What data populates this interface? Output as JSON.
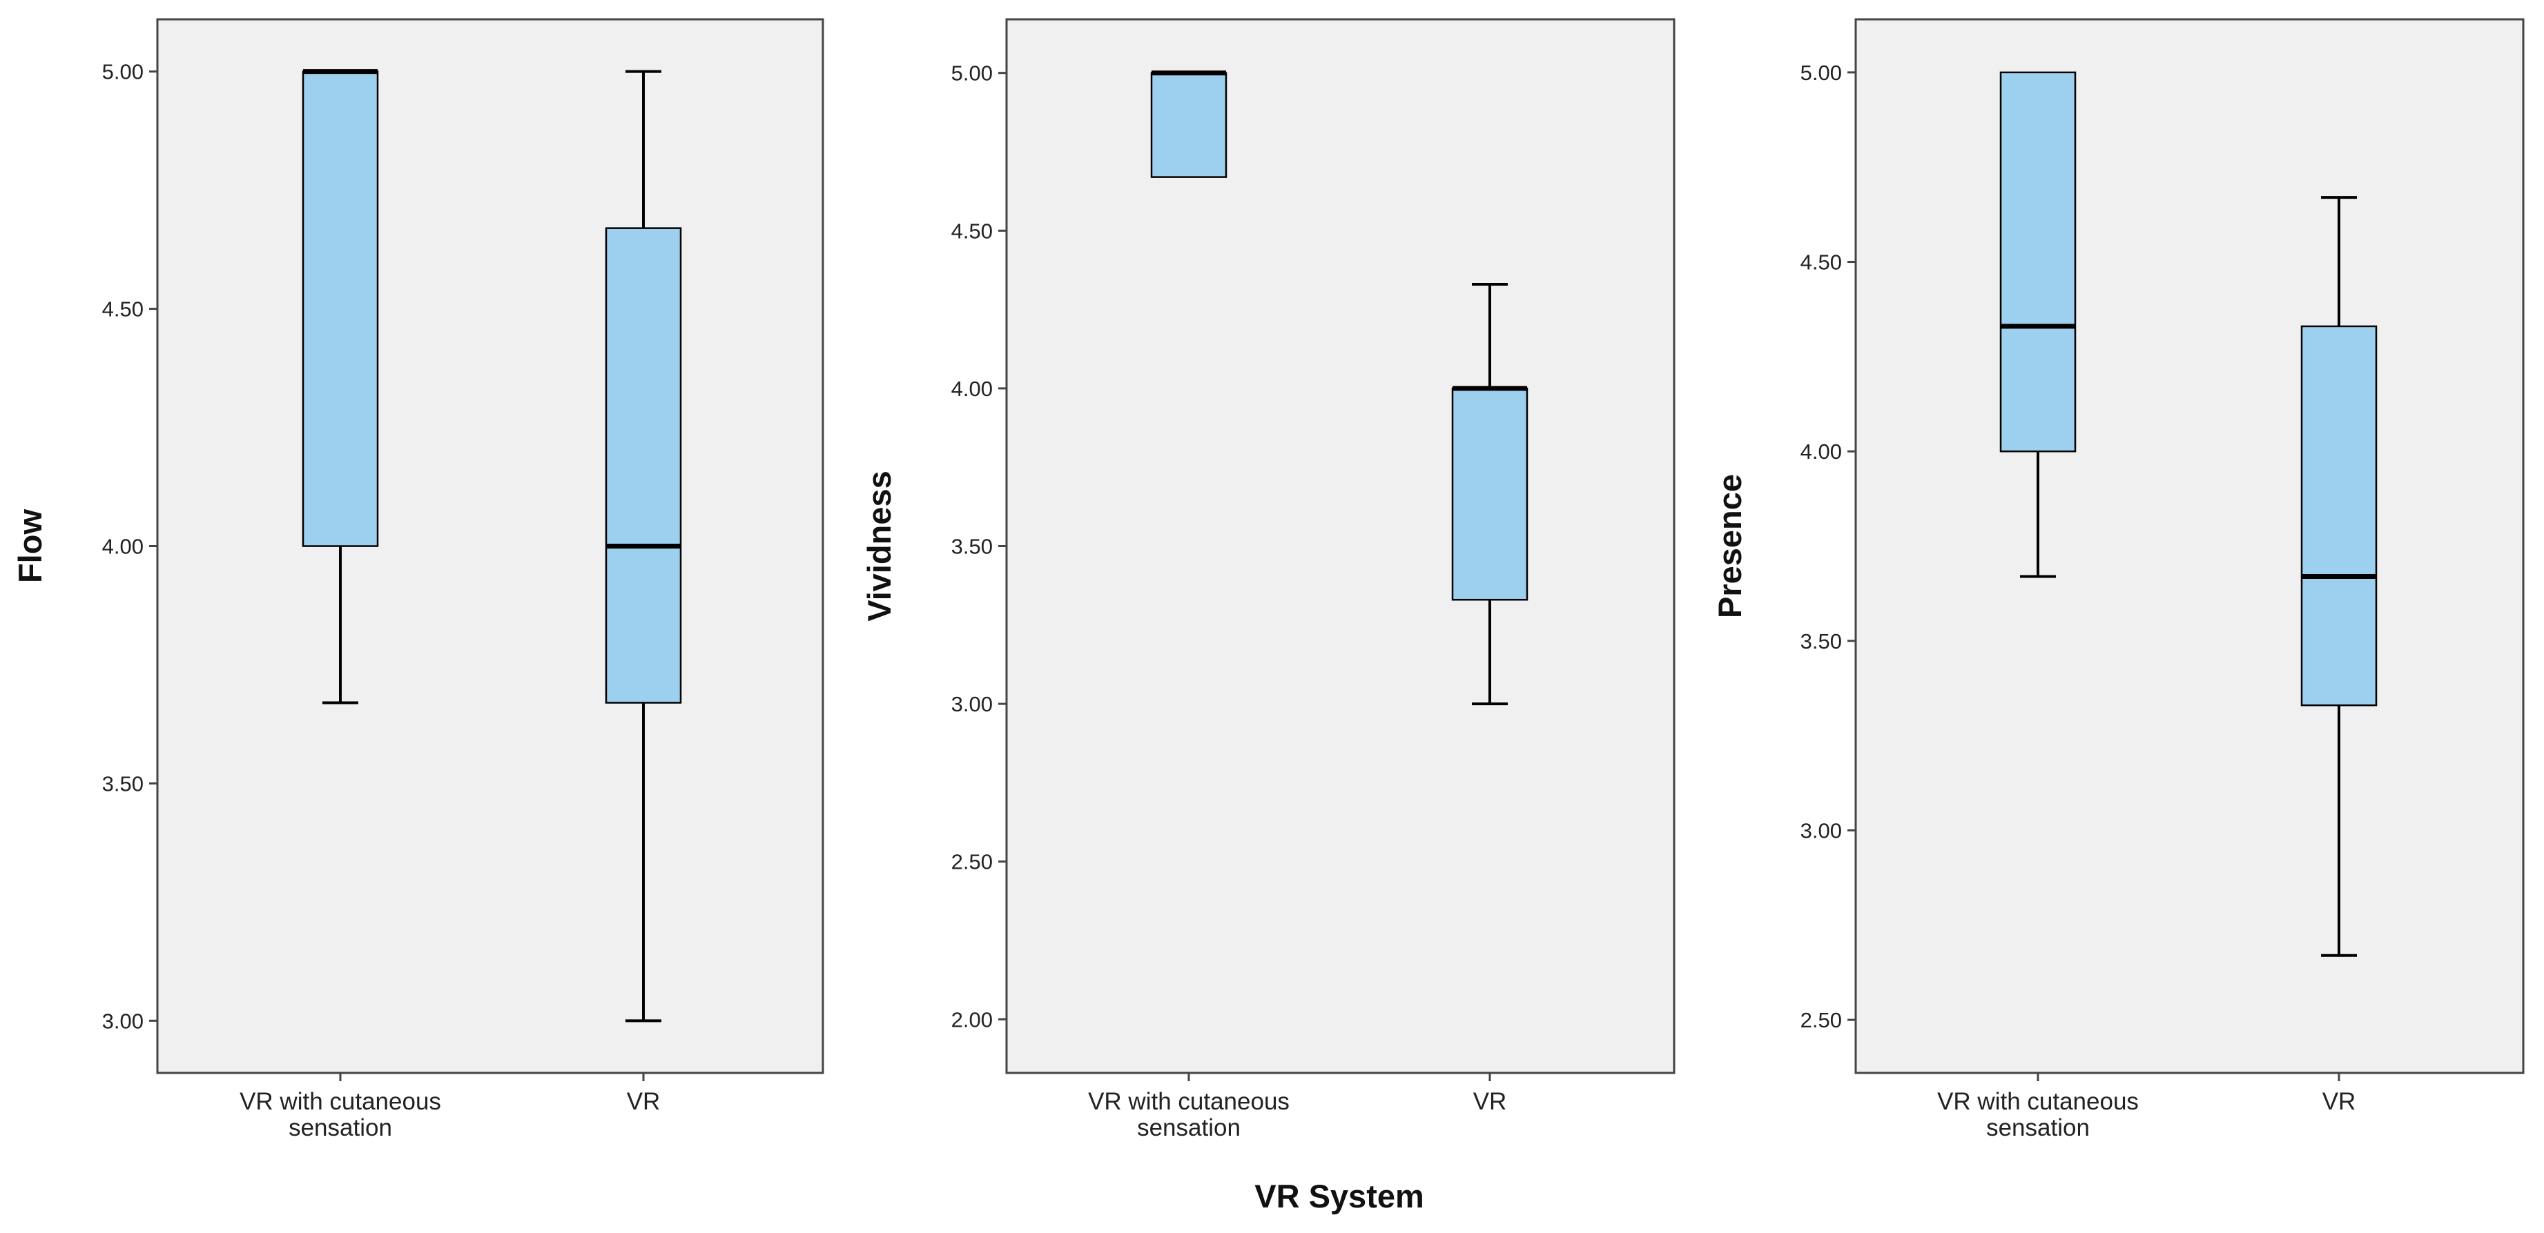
{
  "chart_data": [
    {
      "type": "box",
      "ylabel": "Flow",
      "xlabel": "",
      "ylim": [
        2.89,
        5.11
      ],
      "yticks": [
        "3.00",
        "3.50",
        "4.00",
        "4.50",
        "5.00"
      ],
      "grid": false,
      "categories": [
        "VR with cutaneous\nsensation",
        "VR"
      ],
      "boxes": [
        {
          "whisker_low": 3.67,
          "q1": 4.0,
          "median": 5.0,
          "q3": 5.0,
          "whisker_high": 5.0
        },
        {
          "whisker_low": 3.0,
          "q1": 3.67,
          "median": 4.0,
          "q3": 4.67,
          "whisker_high": 5.0
        }
      ]
    },
    {
      "type": "box",
      "ylabel": "Vividness",
      "xlabel": "VR System",
      "ylim": [
        1.83,
        5.17
      ],
      "yticks": [
        "2.00",
        "2.50",
        "3.00",
        "3.50",
        "4.00",
        "4.50",
        "5.00"
      ],
      "grid": false,
      "categories": [
        "VR with cutaneous\nsensation",
        "VR"
      ],
      "boxes": [
        {
          "whisker_low": 4.67,
          "q1": 4.67,
          "median": 5.0,
          "q3": 5.0,
          "whisker_high": 5.0
        },
        {
          "whisker_low": 3.0,
          "q1": 3.33,
          "median": 4.0,
          "q3": 4.0,
          "whisker_high": 4.33
        }
      ]
    },
    {
      "type": "box",
      "ylabel": "Presence",
      "xlabel": "",
      "ylim": [
        2.36,
        5.14
      ],
      "yticks": [
        "2.50",
        "3.00",
        "3.50",
        "4.00",
        "4.50",
        "5.00"
      ],
      "grid": false,
      "categories": [
        "VR with cutaneous\nsensation",
        "VR"
      ],
      "boxes": [
        {
          "whisker_low": 3.67,
          "q1": 4.0,
          "median": 4.33,
          "q3": 5.0,
          "whisker_high": 5.0
        },
        {
          "whisker_low": 2.67,
          "q1": 3.33,
          "median": 3.67,
          "q3": 4.33,
          "whisker_high": 4.67
        }
      ]
    }
  ],
  "colors": {
    "box_fill": "#9DCFEE",
    "plot_background": "#F0F0F0",
    "line": "#000000",
    "frame": "#444444"
  }
}
